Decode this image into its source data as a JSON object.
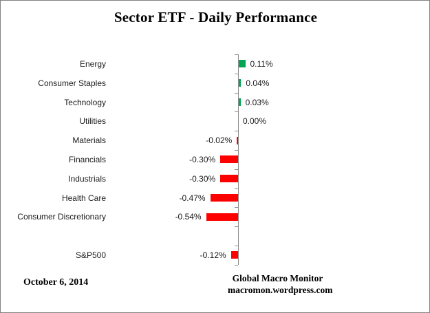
{
  "header": {
    "title": "Sector ETF - Daily Performance"
  },
  "chart_data": {
    "type": "bar",
    "orientation": "horizontal",
    "title": "Sector ETF - Daily Performance",
    "categories": [
      "Energy",
      "Consumer Staples",
      "Technology",
      "Utilities",
      "Materials",
      "Financials",
      "Industrials",
      "Health Care",
      "Consumer Discretionary",
      "S&P500"
    ],
    "values": [
      0.11,
      0.04,
      0.03,
      0.0,
      -0.02,
      -0.3,
      -0.3,
      -0.47,
      -0.54,
      -0.12
    ],
    "value_labels": [
      "0.11%",
      "0.04%",
      "0.03%",
      "0.00%",
      "-0.02%",
      "-0.30%",
      "-0.30%",
      "-0.47%",
      "-0.54%",
      "-0.12%"
    ],
    "gap_before_index": 9,
    "unit": "percent",
    "xlabel": "",
    "ylabel": "",
    "grid": false,
    "legend": "none",
    "zero_axis": true,
    "tick_marks": "category-boundaries",
    "colors": {
      "positive": "#00A651",
      "negative": "#FF0000",
      "axis": "#8C8C8C",
      "text": "#1a1a1a"
    }
  },
  "footer": {
    "date": "October 6, 2014",
    "credit_line1": "Global Macro Monitor",
    "credit_line2": "macromon.wordpress.com"
  }
}
